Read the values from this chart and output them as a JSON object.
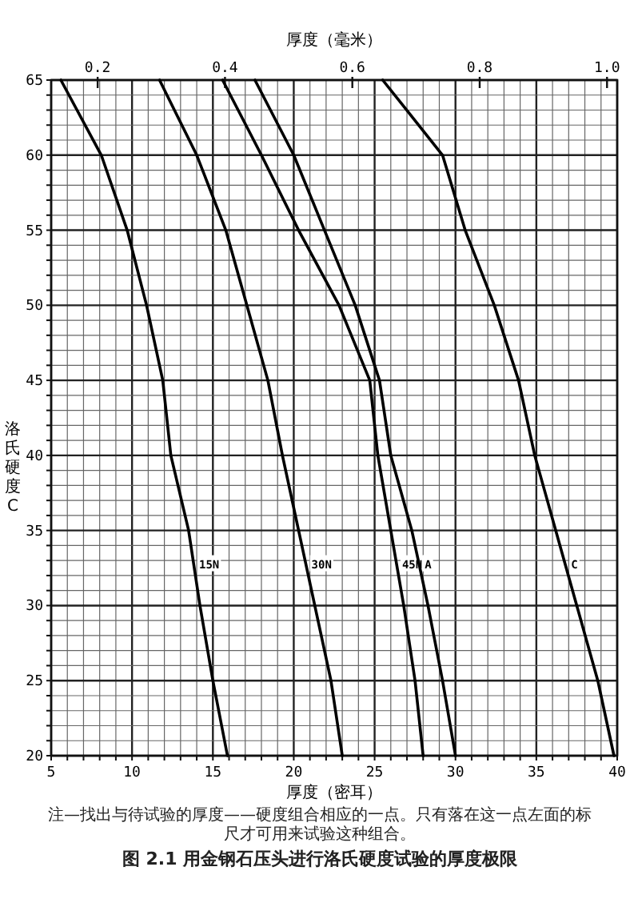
{
  "chart_data": {
    "type": "line",
    "x2label": "厚度（毫米）",
    "xlabel": "厚度（密耳）",
    "ylabel": "洛氏硬度C",
    "xlim": [
      5,
      40
    ],
    "ylim": [
      20,
      65
    ],
    "x2lim": [
      0.127,
      1.016
    ],
    "xticks": [
      5,
      {
        "value": 6,
        "label": null
      },
      {
        "value": 7,
        "label": null
      },
      {
        "value": 8,
        "label": null
      },
      {
        "value": 9,
        "label": null
      },
      10,
      {
        "value": 11,
        "label": null
      },
      {
        "value": 12,
        "label": null
      },
      {
        "value": 13,
        "label": null
      },
      {
        "value": 14,
        "label": null
      },
      15,
      {
        "value": 16,
        "label": null
      },
      {
        "value": 17,
        "label": null
      },
      {
        "value": 18,
        "label": null
      },
      {
        "value": 19,
        "label": null
      },
      20,
      {
        "value": 21,
        "label": null
      },
      {
        "value": 22,
        "label": null
      },
      {
        "value": 23,
        "label": null
      },
      {
        "value": 24,
        "label": null
      },
      25,
      {
        "value": 26,
        "label": null
      },
      {
        "value": 27,
        "label": null
      },
      {
        "value": 28,
        "label": null
      },
      {
        "value": 29,
        "label": null
      },
      30,
      {
        "value": 31,
        "label": null
      },
      {
        "value": 32,
        "label": null
      },
      {
        "value": 33,
        "label": null
      },
      {
        "value": 34,
        "label": null
      },
      35,
      {
        "value": 36,
        "label": null
      },
      {
        "value": 37,
        "label": null
      },
      {
        "value": 38,
        "label": null
      },
      {
        "value": 39,
        "label": null
      },
      40
    ],
    "yticks": [
      20,
      {
        "value": 21,
        "label": null
      },
      {
        "value": 22,
        "label": null
      },
      {
        "value": 23,
        "label": null
      },
      {
        "value": 24,
        "label": null
      },
      25,
      {
        "value": 26,
        "label": null
      },
      {
        "value": 27,
        "label": null
      },
      {
        "value": 28,
        "label": null
      },
      {
        "value": 29,
        "label": null
      },
      30,
      {
        "value": 31,
        "label": null
      },
      {
        "value": 32,
        "label": null
      },
      {
        "value": 33,
        "label": null
      },
      {
        "value": 34,
        "label": null
      },
      35,
      {
        "value": 36,
        "label": null
      },
      {
        "value": 37,
        "label": null
      },
      {
        "value": 38,
        "label": null
      },
      {
        "value": 39,
        "label": null
      },
      40,
      {
        "value": 41,
        "label": null
      },
      {
        "value": 42,
        "label": null
      },
      {
        "value": 43,
        "label": null
      },
      {
        "value": 44,
        "label": null
      },
      45,
      {
        "value": 46,
        "label": null
      },
      {
        "value": 47,
        "label": null
      },
      {
        "value": 48,
        "label": null
      },
      {
        "value": 49,
        "label": null
      },
      50,
      {
        "value": 51,
        "label": null
      },
      {
        "value": 52,
        "label": null
      },
      {
        "value": 53,
        "label": null
      },
      {
        "value": 54,
        "label": null
      },
      55,
      {
        "value": 56,
        "label": null
      },
      {
        "value": 57,
        "label": null
      },
      {
        "value": 58,
        "label": null
      },
      {
        "value": 59,
        "label": null
      },
      60,
      {
        "value": 61,
        "label": null
      },
      {
        "value": 62,
        "label": null
      },
      {
        "value": 63,
        "label": null
      },
      {
        "value": 64,
        "label": null
      },
      65
    ],
    "x2ticks": [
      0.2,
      0.4,
      0.6,
      0.8,
      {
        "value": 1,
        "label": "1.0"
      }
    ],
    "grid": true,
    "series": [
      {
        "name": "15N",
        "color": "#000000",
        "x": [
          5.6,
          8.1,
          9.7,
          10.9,
          11.9,
          12.4,
          13.5,
          14.2,
          15.0,
          15.9
        ],
        "values": [
          65,
          60,
          55,
          50,
          45,
          40,
          35,
          30,
          25,
          20
        ]
      },
      {
        "name": "30N",
        "color": "#000000",
        "x": [
          11.7,
          14.0,
          15.8,
          17.1,
          18.4,
          19.3,
          20.3,
          21.3,
          22.3,
          23.0
        ],
        "values": [
          65,
          60,
          55,
          50,
          45,
          40,
          35,
          30,
          25,
          20
        ]
      },
      {
        "name": "45N",
        "color": "#000000",
        "x": [
          15.6,
          18.0,
          20.3,
          22.8,
          24.7,
          25.2,
          26.0,
          26.8,
          27.5,
          28.0
        ],
        "values": [
          65,
          60,
          55,
          50,
          45,
          40,
          35,
          30,
          25,
          20
        ]
      },
      {
        "name": "A",
        "color": "#000000",
        "x": [
          17.6,
          20.0,
          21.9,
          23.8,
          25.3,
          26.0,
          27.3,
          28.3,
          29.2,
          30.0
        ],
        "values": [
          65,
          60,
          55,
          50,
          45,
          40,
          35,
          30,
          25,
          20
        ]
      },
      {
        "name": "C",
        "color": "#000000",
        "x": [
          25.5,
          29.2,
          30.6,
          32.4,
          33.9,
          34.9,
          36.2,
          37.5,
          38.8,
          39.8
        ],
        "values": [
          65,
          60,
          55,
          50,
          45,
          40,
          35,
          30,
          25,
          20
        ]
      }
    ],
    "annotations": [
      "注—找出与待试验的厚度——硬度组合相应的一点。只有落在这一点左面的标尺才可用来试验这种组合。",
      "图 2.1 用金钢石压头进行洛氏硬度试验的厚度极限"
    ]
  }
}
